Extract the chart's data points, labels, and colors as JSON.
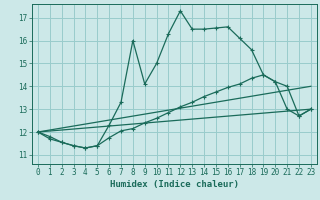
{
  "xlabel": "Humidex (Indice chaleur)",
  "bg_color": "#cce8e8",
  "grid_color": "#99cccc",
  "line_color": "#1a6b5a",
  "xlim": [
    -0.5,
    23.5
  ],
  "ylim": [
    10.6,
    17.6
  ],
  "yticks": [
    11,
    12,
    13,
    14,
    15,
    16,
    17
  ],
  "xticks": [
    0,
    1,
    2,
    3,
    4,
    5,
    6,
    7,
    8,
    9,
    10,
    11,
    12,
    13,
    14,
    15,
    16,
    17,
    18,
    19,
    20,
    21,
    22,
    23
  ],
  "lines": [
    {
      "x": [
        0,
        1,
        2,
        3,
        4,
        5,
        6,
        7,
        8,
        9,
        10,
        11,
        12,
        13,
        14,
        15,
        16,
        17,
        18,
        19,
        20,
        21,
        22,
        23
      ],
      "y": [
        12.0,
        11.8,
        11.55,
        11.4,
        11.3,
        11.4,
        12.3,
        13.3,
        16.0,
        14.1,
        15.0,
        16.3,
        17.3,
        16.5,
        16.5,
        16.55,
        16.6,
        16.1,
        15.6,
        14.5,
        14.2,
        14.0,
        12.7,
        13.0
      ],
      "has_markers": true
    },
    {
      "x": [
        0,
        1,
        2,
        3,
        4,
        5,
        6,
        7,
        8,
        9,
        10,
        11,
        12,
        13,
        14,
        15,
        16,
        17,
        18,
        19,
        20,
        21,
        22,
        23
      ],
      "y": [
        12.0,
        11.7,
        11.55,
        11.4,
        11.3,
        11.4,
        11.75,
        12.05,
        12.15,
        12.4,
        12.6,
        12.85,
        13.1,
        13.3,
        13.55,
        13.75,
        13.95,
        14.1,
        14.35,
        14.5,
        14.2,
        13.0,
        12.7,
        13.0
      ],
      "has_markers": true
    },
    {
      "x": [
        0,
        23
      ],
      "y": [
        12.0,
        13.0
      ],
      "has_markers": false
    },
    {
      "x": [
        0,
        23
      ],
      "y": [
        12.0,
        14.0
      ],
      "has_markers": false
    }
  ]
}
